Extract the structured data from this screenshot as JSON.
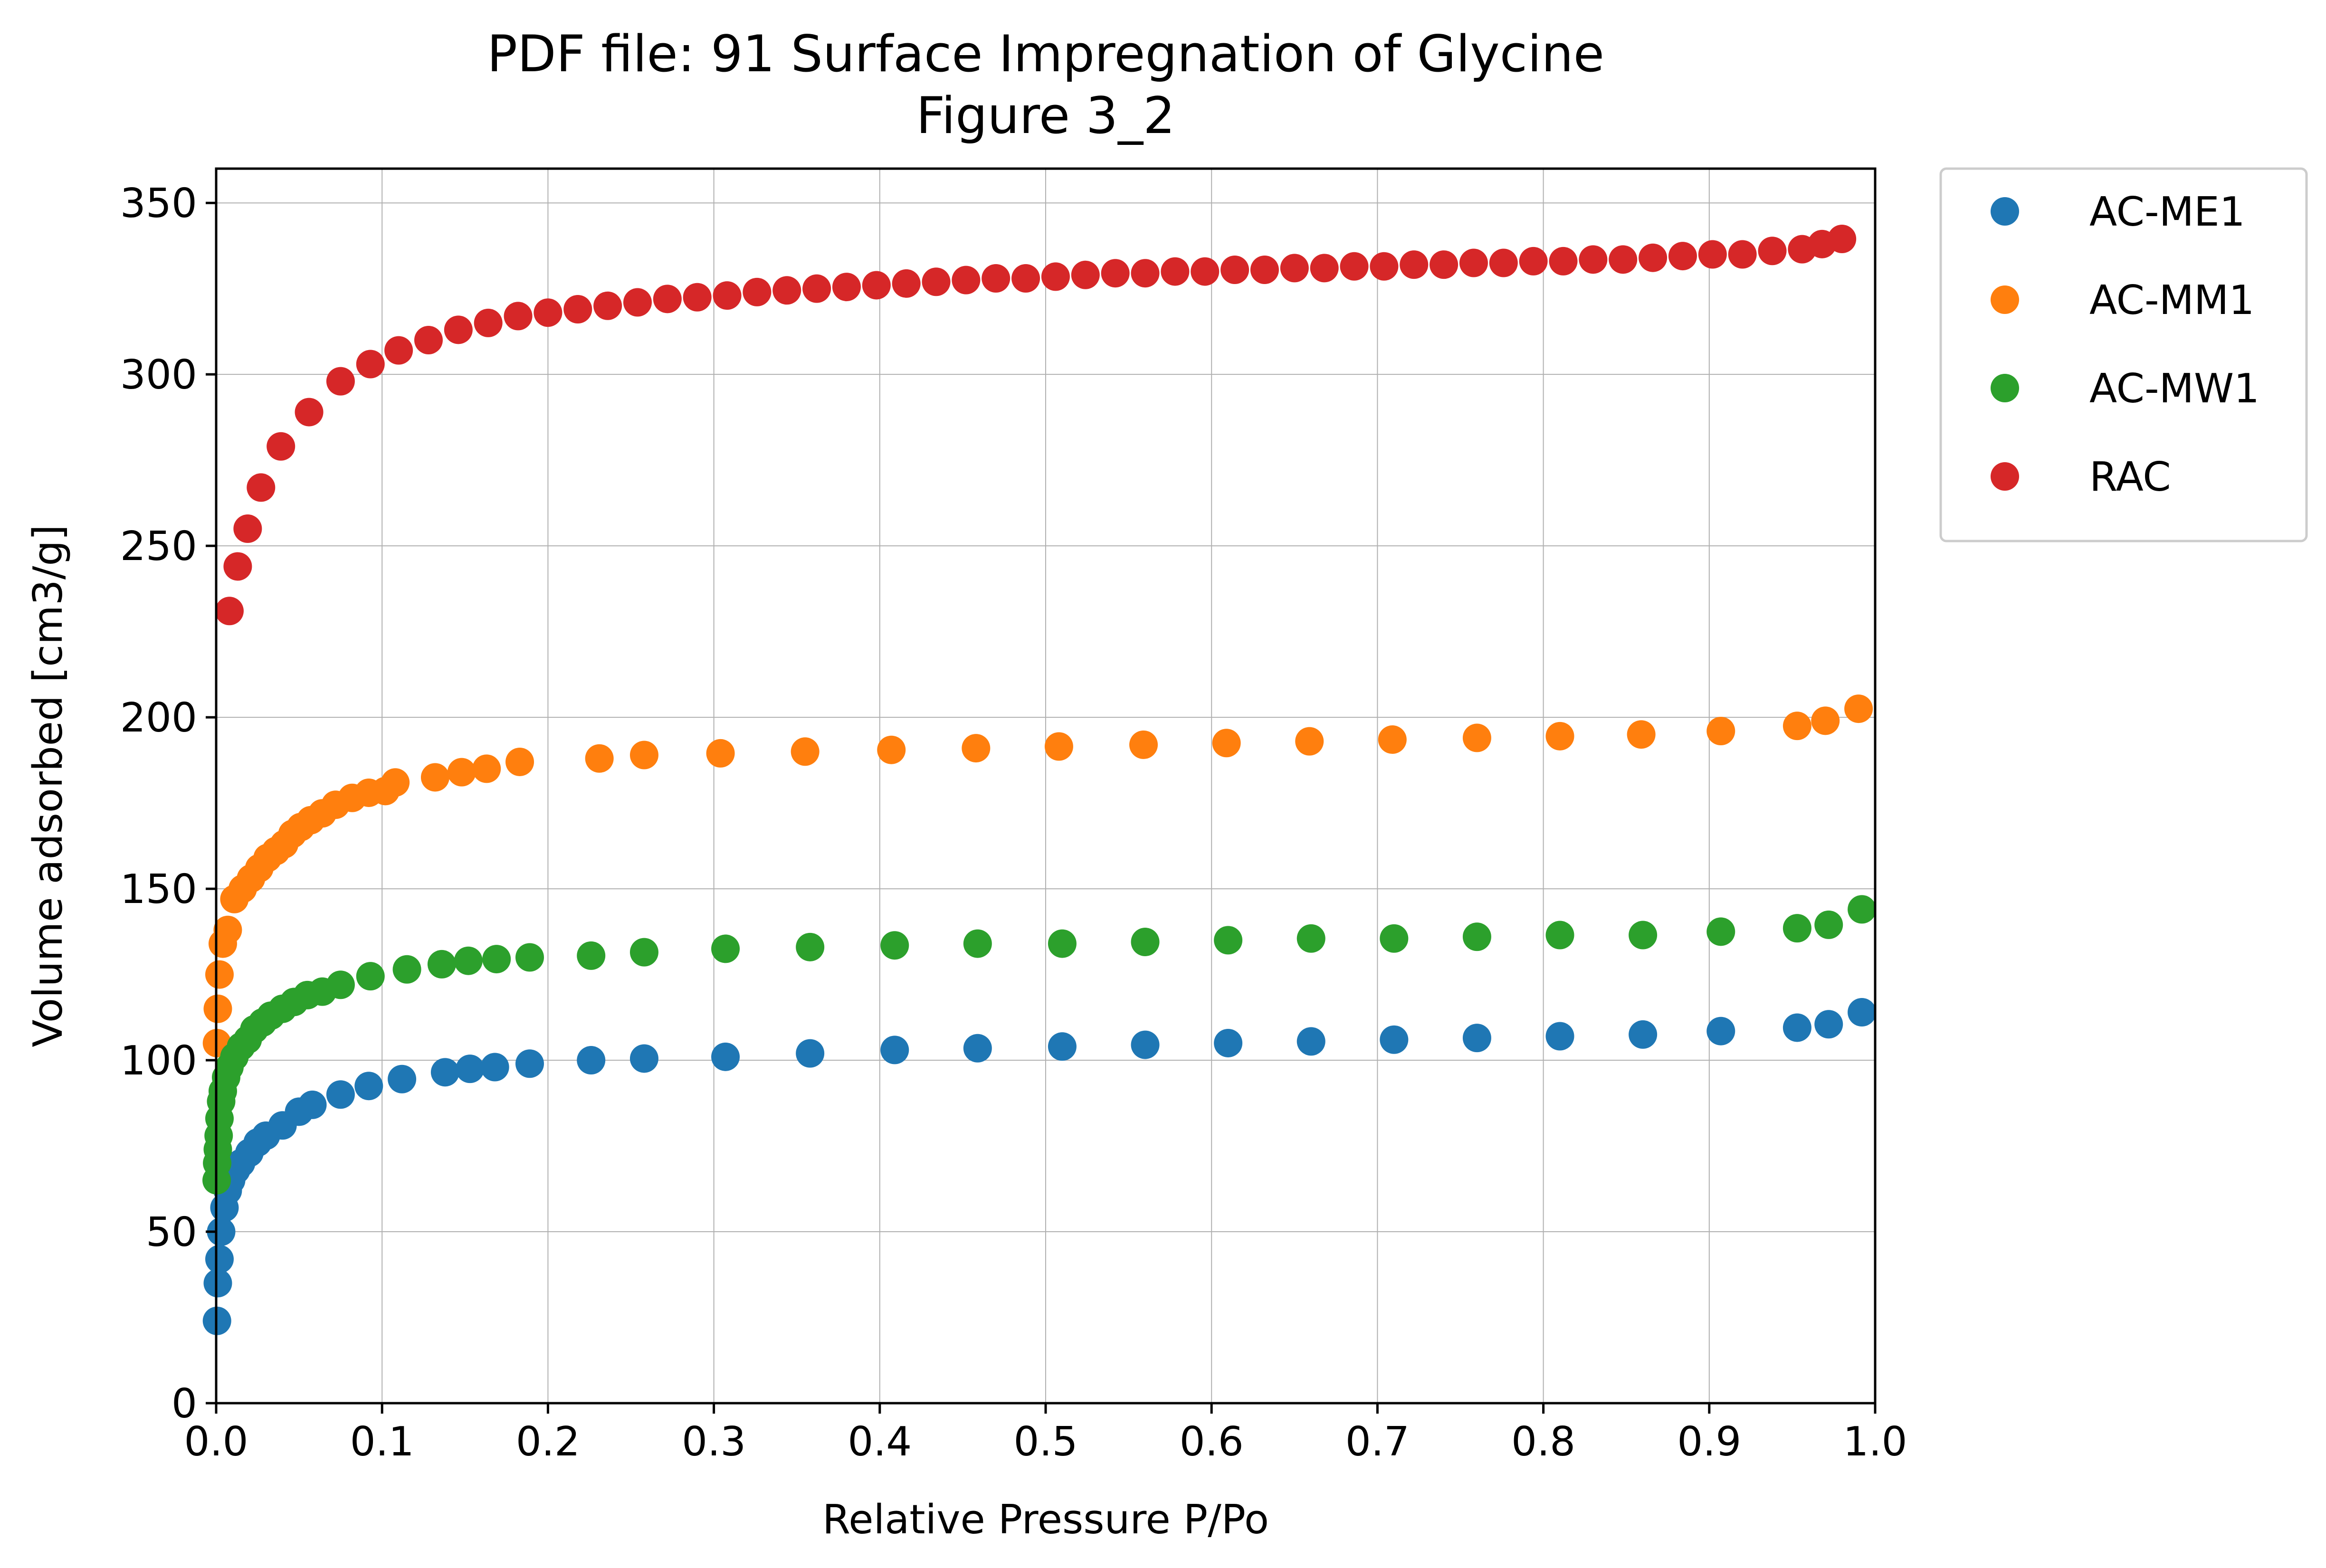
{
  "chart_data": {
    "type": "scatter",
    "title": "PDF file: 91 Surface Impregnation of Glycine",
    "subtitle": "Figure 3_2",
    "xlabel": "Relative Pressure P/Po",
    "ylabel": "Volume adsorbed [cm3/g]",
    "xlim": [
      0,
      1.0
    ],
    "ylim": [
      0,
      360
    ],
    "xticks": [
      "0.0",
      "0.1",
      "0.2",
      "0.3",
      "0.4",
      "0.5",
      "0.6",
      "0.7",
      "0.8",
      "0.9",
      "1.0"
    ],
    "yticks": [
      "0",
      "50",
      "100",
      "150",
      "200",
      "250",
      "300",
      "350"
    ],
    "grid": true,
    "legend_position": "outside-upper-right",
    "series": [
      {
        "name": "AC-ME1",
        "color": "#1f77b4",
        "x": [
          0.0005,
          0.001,
          0.002,
          0.003,
          0.005,
          0.007,
          0.009,
          0.012,
          0.015,
          0.02,
          0.025,
          0.03,
          0.04,
          0.05,
          0.058,
          0.075,
          0.092,
          0.112,
          0.138,
          0.153,
          0.168,
          0.189,
          0.226,
          0.258,
          0.307,
          0.358,
          0.409,
          0.459,
          0.51,
          0.56,
          0.61,
          0.66,
          0.71,
          0.76,
          0.81,
          0.86,
          0.907,
          0.953,
          0.972,
          0.992
        ],
        "y": [
          24,
          35,
          42,
          50,
          57,
          62,
          65,
          68,
          70,
          73,
          76,
          78,
          81,
          85,
          87,
          90,
          92.5,
          94.5,
          96.5,
          97.5,
          98,
          99,
          100,
          100.5,
          101,
          102,
          103,
          103.5,
          104,
          104.5,
          105,
          105.5,
          106,
          106.5,
          107,
          107.5,
          108.5,
          109.5,
          110.5,
          114
        ]
      },
      {
        "name": "AC-MM1",
        "color": "#ff7f0e",
        "x": [
          0.0005,
          0.001,
          0.002,
          0.004,
          0.007,
          0.011,
          0.016,
          0.021,
          0.026,
          0.031,
          0.036,
          0.041,
          0.046,
          0.051,
          0.057,
          0.064,
          0.072,
          0.082,
          0.092,
          0.102,
          0.108,
          0.132,
          0.148,
          0.163,
          0.183,
          0.231,
          0.258,
          0.304,
          0.355,
          0.407,
          0.458,
          0.508,
          0.559,
          0.609,
          0.659,
          0.709,
          0.76,
          0.81,
          0.859,
          0.907,
          0.953,
          0.97,
          0.99
        ],
        "y": [
          105,
          115,
          125,
          134,
          138,
          147,
          150,
          153,
          156,
          159,
          161,
          163,
          166,
          168,
          170,
          172,
          174.5,
          176.5,
          178,
          178.5,
          181,
          182.5,
          184,
          185,
          187,
          188,
          189,
          189.5,
          190,
          190.5,
          191,
          191.5,
          192,
          192.5,
          193,
          193.5,
          194,
          194.5,
          195,
          196,
          197.5,
          199,
          202.5
        ]
      },
      {
        "name": "AC-MW1",
        "color": "#2ca02c",
        "x": [
          0.0003,
          0.0006,
          0.001,
          0.0015,
          0.002,
          0.003,
          0.004,
          0.006,
          0.008,
          0.011,
          0.015,
          0.019,
          0.023,
          0.028,
          0.033,
          0.04,
          0.047,
          0.055,
          0.064,
          0.075,
          0.093,
          0.115,
          0.136,
          0.152,
          0.169,
          0.189,
          0.226,
          0.258,
          0.307,
          0.358,
          0.409,
          0.459,
          0.51,
          0.56,
          0.61,
          0.66,
          0.71,
          0.76,
          0.81,
          0.86,
          0.907,
          0.953,
          0.972,
          0.992
        ],
        "y": [
          65,
          70,
          74,
          78,
          83,
          88,
          91,
          95,
          98,
          101,
          104,
          106,
          109,
          111,
          113,
          115,
          117,
          119,
          120,
          122,
          124.5,
          126.5,
          128,
          129,
          129.5,
          130,
          130.5,
          131.5,
          132.5,
          133,
          133.5,
          134,
          134,
          134.5,
          135,
          135.5,
          135.5,
          136,
          136.5,
          136.5,
          137.5,
          138.5,
          139.5,
          144
        ]
      },
      {
        "name": "RAC",
        "color": "#d62728",
        "x": [
          0.008,
          0.013,
          0.019,
          0.027,
          0.039,
          0.056,
          0.075,
          0.093,
          0.11,
          0.128,
          0.146,
          0.164,
          0.182,
          0.2,
          0.218,
          0.236,
          0.254,
          0.272,
          0.29,
          0.308,
          0.326,
          0.344,
          0.362,
          0.38,
          0.398,
          0.416,
          0.434,
          0.452,
          0.47,
          0.488,
          0.506,
          0.524,
          0.542,
          0.56,
          0.578,
          0.596,
          0.614,
          0.632,
          0.65,
          0.668,
          0.686,
          0.704,
          0.722,
          0.74,
          0.758,
          0.776,
          0.794,
          0.812,
          0.83,
          0.848,
          0.866,
          0.884,
          0.902,
          0.92,
          0.938,
          0.956,
          0.968,
          0.98
        ],
        "y": [
          231,
          244,
          255,
          267,
          279,
          289,
          298,
          303,
          307,
          310,
          313,
          315,
          317,
          318,
          319,
          320,
          321,
          322,
          322.5,
          323,
          324,
          324.5,
          325,
          325.5,
          326,
          326.5,
          327,
          327.5,
          328,
          328,
          328.5,
          329,
          329.5,
          329.5,
          330,
          330,
          330.5,
          330.5,
          331,
          331,
          331.5,
          331.5,
          332,
          332,
          332.5,
          332.5,
          333,
          333,
          333.5,
          333.5,
          334,
          334.5,
          335,
          335,
          336,
          336.5,
          338,
          339.5
        ]
      }
    ]
  }
}
